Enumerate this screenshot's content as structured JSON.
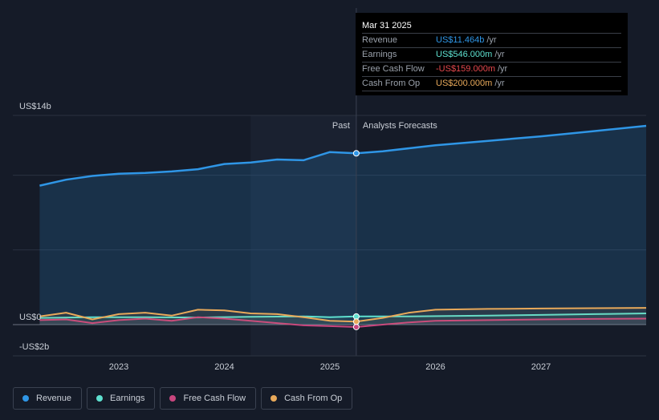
{
  "colors": {
    "revenue": "#2f96e6",
    "earnings": "#5ee0cf",
    "free_cash_flow": "#c8467e",
    "cash_from_op": "#e8a95a",
    "background": "#151b28"
  },
  "tooltip": {
    "date": "Mar 31 2025",
    "rows": [
      {
        "label": "Revenue",
        "value": "US$11.464b",
        "unit": "/yr",
        "color": "#2f96e6"
      },
      {
        "label": "Earnings",
        "value": "US$546.000m",
        "unit": "/yr",
        "color": "#5ee0cf"
      },
      {
        "label": "Free Cash Flow",
        "value": "-US$159.000m",
        "unit": "/yr",
        "color": "#e5484d"
      },
      {
        "label": "Cash From Op",
        "value": "US$200.000m",
        "unit": "/yr",
        "color": "#e8a95a"
      }
    ]
  },
  "section_labels": {
    "past": "Past",
    "forecast": "Analysts Forecasts"
  },
  "legend": [
    {
      "label": "Revenue",
      "color": "#2f96e6"
    },
    {
      "label": "Earnings",
      "color": "#5ee0cf"
    },
    {
      "label": "Free Cash Flow",
      "color": "#c8467e"
    },
    {
      "label": "Cash From Op",
      "color": "#e8a95a"
    }
  ],
  "chart_data": {
    "type": "area",
    "y_tick_labels": [
      "US$14b",
      "US$0",
      "-US$2b"
    ],
    "x_tick_labels": [
      "2023",
      "2024",
      "2025",
      "2026",
      "2027"
    ],
    "x_ticks": [
      2023.0,
      2024.0,
      2025.0,
      2026.0,
      2027.0
    ],
    "xlim": [
      2022.0,
      2028.0
    ],
    "ylim": [
      -2,
      14
    ],
    "highlight_x": 2025.25,
    "past_region_start_x": 2024.25,
    "series": [
      {
        "name": "Revenue",
        "color": "#2f96e6",
        "fill": true,
        "x": [
          2022.25,
          2022.5,
          2022.75,
          2023.0,
          2023.25,
          2023.5,
          2023.75,
          2024.0,
          2024.25,
          2024.5,
          2024.75,
          2025.0,
          2025.25,
          2025.5,
          2025.75,
          2026.0,
          2026.5,
          2027.0,
          2027.5,
          2028.0
        ],
        "y": [
          9.3,
          9.7,
          9.95,
          10.1,
          10.15,
          10.25,
          10.4,
          10.75,
          10.85,
          11.05,
          11.0,
          11.55,
          11.464,
          11.6,
          11.8,
          12.0,
          12.3,
          12.6,
          12.95,
          13.3
        ]
      },
      {
        "name": "Earnings",
        "color": "#5ee0cf",
        "fill": false,
        "x": [
          2022.25,
          2022.75,
          2023.25,
          2023.75,
          2024.25,
          2024.75,
          2025.0,
          2025.25,
          2025.75,
          2026.5,
          2027.0,
          2027.5,
          2028.0
        ],
        "y": [
          0.45,
          0.5,
          0.5,
          0.48,
          0.52,
          0.55,
          0.5,
          0.546,
          0.55,
          0.6,
          0.65,
          0.7,
          0.75
        ]
      },
      {
        "name": "Free Cash Flow",
        "color": "#c8467e",
        "fill": false,
        "x": [
          2022.25,
          2022.5,
          2022.75,
          2023.0,
          2023.25,
          2023.5,
          2023.75,
          2024.0,
          2024.25,
          2024.5,
          2024.75,
          2025.0,
          2025.25,
          2025.5,
          2025.75,
          2026.0,
          2026.5,
          2027.0,
          2027.5,
          2028.0
        ],
        "y": [
          0.3,
          0.35,
          0.1,
          0.3,
          0.4,
          0.25,
          0.5,
          0.4,
          0.25,
          0.1,
          -0.05,
          -0.1,
          -0.159,
          0.0,
          0.15,
          0.25,
          0.3,
          0.35,
          0.38,
          0.4
        ]
      },
      {
        "name": "Cash From Op",
        "color": "#e8a95a",
        "fill": false,
        "x": [
          2022.25,
          2022.5,
          2022.75,
          2023.0,
          2023.25,
          2023.5,
          2023.75,
          2024.0,
          2024.25,
          2024.5,
          2024.75,
          2025.0,
          2025.25,
          2025.5,
          2025.75,
          2026.0,
          2026.5,
          2027.0,
          2027.5,
          2028.0
        ],
        "y": [
          0.55,
          0.8,
          0.35,
          0.7,
          0.8,
          0.6,
          1.0,
          0.95,
          0.75,
          0.7,
          0.5,
          0.25,
          0.2,
          0.45,
          0.8,
          1.0,
          1.05,
          1.08,
          1.1,
          1.12
        ]
      }
    ]
  }
}
